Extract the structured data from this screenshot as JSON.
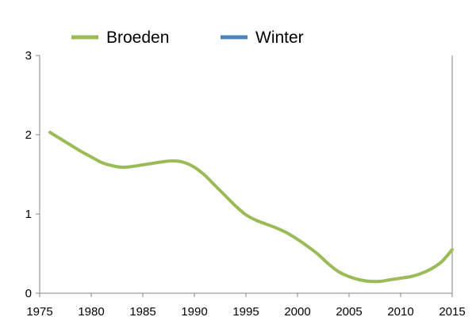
{
  "chart_data": {
    "type": "line",
    "title": "",
    "xlabel": "",
    "ylabel": "",
    "xlim": [
      1975,
      2015
    ],
    "ylim": [
      0,
      3
    ],
    "x_ticks": [
      "1975",
      "1980",
      "1985",
      "1990",
      "1995",
      "2000",
      "2005",
      "2010",
      "2015"
    ],
    "y_ticks": [
      "0",
      "1",
      "2",
      "3"
    ],
    "grid": false,
    "legend_position": "top",
    "series": [
      {
        "name": "Broeden",
        "color": "#9bbb59",
        "points": [
          [
            1976,
            2.03
          ],
          [
            1977,
            1.95
          ],
          [
            1978,
            1.87
          ],
          [
            1979,
            1.79
          ],
          [
            1980,
            1.72
          ],
          [
            1981,
            1.65
          ],
          [
            1982,
            1.61
          ],
          [
            1983,
            1.59
          ],
          [
            1984,
            1.6
          ],
          [
            1985,
            1.62
          ],
          [
            1986,
            1.64
          ],
          [
            1987,
            1.66
          ],
          [
            1988,
            1.67
          ],
          [
            1989,
            1.65
          ],
          [
            1990,
            1.59
          ],
          [
            1991,
            1.49
          ],
          [
            1992,
            1.36
          ],
          [
            1993,
            1.23
          ],
          [
            1994,
            1.1
          ],
          [
            1995,
            0.99
          ],
          [
            1996,
            0.92
          ],
          [
            1997,
            0.87
          ],
          [
            1998,
            0.82
          ],
          [
            1999,
            0.76
          ],
          [
            2000,
            0.68
          ],
          [
            2001,
            0.59
          ],
          [
            2002,
            0.49
          ],
          [
            2003,
            0.37
          ],
          [
            2004,
            0.27
          ],
          [
            2005,
            0.21
          ],
          [
            2006,
            0.17
          ],
          [
            2007,
            0.15
          ],
          [
            2008,
            0.15
          ],
          [
            2009,
            0.17
          ],
          [
            2010,
            0.19
          ],
          [
            2011,
            0.21
          ],
          [
            2012,
            0.25
          ],
          [
            2013,
            0.31
          ],
          [
            2014,
            0.4
          ],
          [
            2015,
            0.55
          ]
        ]
      },
      {
        "name": "Winter",
        "color": "#4f81bd",
        "points": []
      }
    ]
  }
}
